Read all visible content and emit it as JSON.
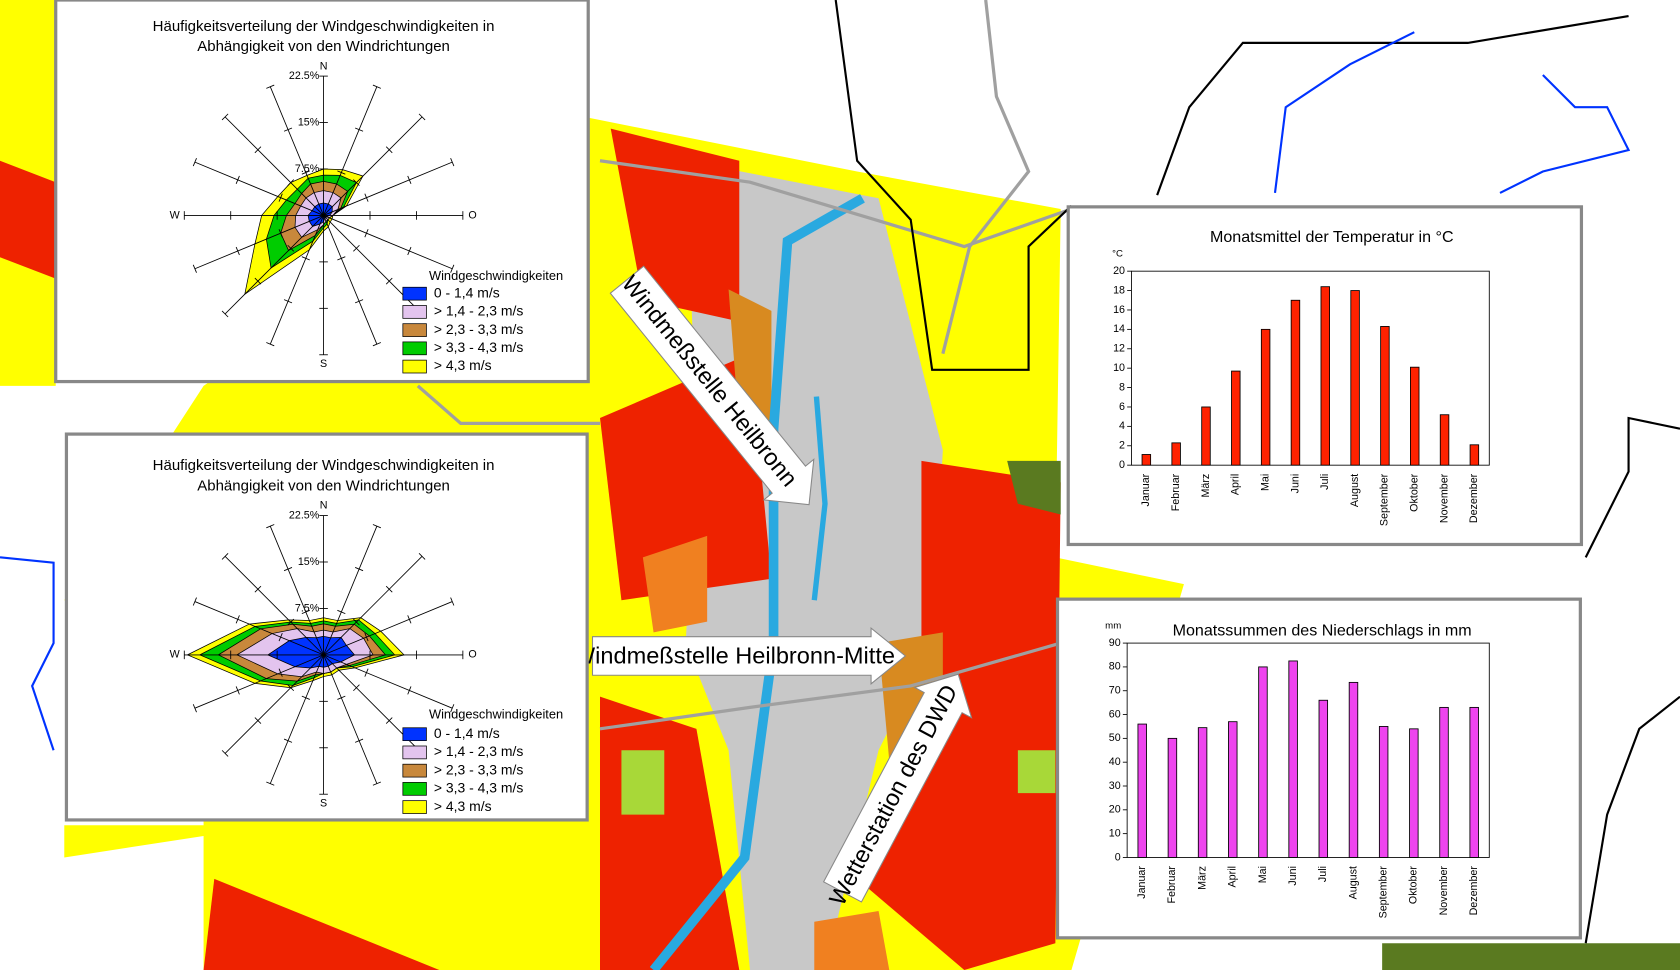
{
  "chart_data": [
    {
      "type": "windrose",
      "title": [
        "Häufigkeitsverteilung der Windgeschwindigkeiten in",
        "Abhängigkeit von den Windrichtungen"
      ],
      "categories": [
        "N",
        null,
        null,
        null,
        "O",
        null,
        null,
        null,
        "S",
        null,
        null,
        null,
        "W",
        null,
        null,
        null
      ],
      "legend_title": "Windgeschwindigkeiten",
      "rlim": [
        0,
        22.5
      ],
      "rticks": [
        {
          "value": 7.5,
          "label": "7.5%"
        },
        {
          "value": 15,
          "label": "15%"
        },
        {
          "value": 22.5,
          "label": "22.5%"
        }
      ],
      "series": [
        {
          "name": "0 - 1,4 m/s",
          "color": "#0033ff",
          "values": [
            2,
            2,
            2,
            1.5,
            1,
            0.5,
            0.5,
            0.5,
            1,
            1.5,
            2.5,
            2.5,
            2.5,
            2,
            2,
            2
          ]
        },
        {
          "name": "> 1,4 - 2,3 m/s",
          "color": "#e3c4ee",
          "values": [
            2,
            2,
            2,
            1,
            0.5,
            0.5,
            0.5,
            0.5,
            0.5,
            1,
            2.5,
            2.5,
            2,
            2,
            2,
            2
          ]
        },
        {
          "name": "> 2,3 - 3,3 m/s",
          "color": "#c8883c",
          "values": [
            1.5,
            1.5,
            1.5,
            0.5,
            0,
            0,
            0,
            0,
            0,
            1,
            3,
            2.5,
            1.5,
            1,
            1,
            1.5
          ]
        },
        {
          "name": "> 3,3 - 4,3 m/s",
          "color": "#00cc00",
          "values": [
            1,
            1.5,
            2,
            0.5,
            0,
            0,
            0,
            0.5,
            0.5,
            1,
            4,
            2.5,
            2,
            1.5,
            1,
            1
          ]
        },
        {
          "name": "> 4,3 m/s",
          "color": "#ffff00",
          "values": [
            1,
            1,
            1.5,
            0.5,
            0,
            0.5,
            0.5,
            0.5,
            0.5,
            1.5,
            6,
            2,
            2,
            1.5,
            1.5,
            0.5
          ]
        }
      ]
    },
    {
      "type": "windrose",
      "title": [
        "Häufigkeitsverteilung der Windgeschwindigkeiten in",
        "Abhängigkeit von den Windrichtungen"
      ],
      "categories": [
        "N",
        null,
        null,
        null,
        "O",
        null,
        null,
        null,
        "S",
        null,
        null,
        null,
        "W",
        null,
        null,
        null
      ],
      "legend_title": "Windgeschwindigkeiten",
      "rlim": [
        0,
        22.5
      ],
      "rticks": [
        {
          "value": 7.5,
          "label": "7.5%"
        },
        {
          "value": 15,
          "label": "15%"
        },
        {
          "value": 22.5,
          "label": "22.5%"
        }
      ],
      "series": [
        {
          "name": "0 - 1,4 m/s",
          "color": "#0033ff",
          "values": [
            3,
            3,
            4,
            4,
            5,
            3,
            2,
            2,
            2,
            2,
            3,
            5,
            9,
            6,
            4,
            3
          ]
        },
        {
          "name": "> 1,4 - 2,3 m/s",
          "color": "#e3c4ee",
          "values": [
            1,
            1,
            2,
            3,
            3,
            1,
            1,
            1,
            1,
            1,
            2,
            3,
            5,
            3,
            2,
            1
          ]
        },
        {
          "name": "> 2,3 - 3,3 m/s",
          "color": "#c8883c",
          "values": [
            1,
            1,
            1,
            1,
            2,
            0.5,
            0,
            0,
            0,
            0.5,
            1,
            2,
            3,
            2,
            1,
            1
          ]
        },
        {
          "name": "> 3,3 - 4,3 m/s",
          "color": "#00cc00",
          "values": [
            0.5,
            0.5,
            1,
            1,
            1.5,
            0.5,
            0,
            0,
            0,
            0.5,
            1,
            1,
            3,
            1,
            0.5,
            0.5
          ]
        },
        {
          "name": "> 4,3 m/s",
          "color": "#ffff00",
          "values": [
            0.5,
            0.5,
            0.5,
            1,
            1.5,
            0.5,
            0.5,
            0.5,
            0.5,
            0.5,
            0.5,
            1,
            2,
            1,
            0.5,
            0.5
          ]
        }
      ]
    },
    {
      "type": "bar",
      "title": "Monatsmittel der Temperatur in  °C",
      "y_unit": "°C",
      "categories": [
        "Januar",
        "Februar",
        "März",
        "April",
        "Mai",
        "Juni",
        "Juli",
        "August",
        "September",
        "Oktober",
        "November",
        "Dezember"
      ],
      "values": [
        1.1,
        2.3,
        6,
        9.7,
        14,
        17,
        18.4,
        18,
        14.3,
        10.1,
        5.2,
        2.1
      ],
      "color": "#ff2200",
      "ylim": [
        0,
        20
      ],
      "yticks": [
        0,
        2,
        4,
        6,
        8,
        10,
        12,
        14,
        16,
        18,
        20
      ]
    },
    {
      "type": "bar",
      "title": "Monatssummen des Niederschlags in mm",
      "y_unit": "mm",
      "categories": [
        "Januar",
        "Februar",
        "März",
        "April",
        "Mai",
        "Juni",
        "Juli",
        "August",
        "September",
        "Oktober",
        "November",
        "Dezember"
      ],
      "values": [
        56,
        50,
        54.5,
        57,
        80,
        82.5,
        66,
        73.5,
        55,
        54,
        63,
        63
      ],
      "color": "#ee44ee",
      "ylim": [
        0,
        90
      ],
      "yticks": [
        0,
        10,
        20,
        30,
        40,
        50,
        60,
        70,
        80,
        90
      ]
    }
  ],
  "map": {
    "labels": [
      "Windmeßstelle Heilbronn",
      "Windmeßstelle Heilbronn-Mitte",
      "Wetterstation des DWD"
    ]
  }
}
